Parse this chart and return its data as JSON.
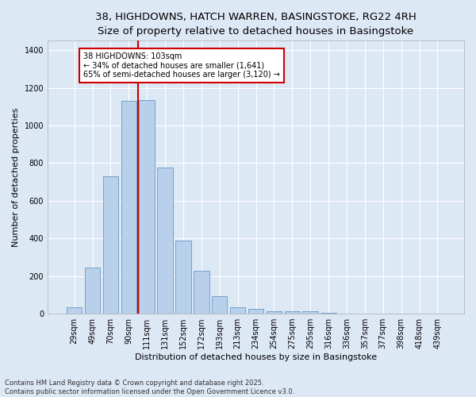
{
  "title_line1": "38, HIGHDOWNS, HATCH WARREN, BASINGSTOKE, RG22 4RH",
  "title_line2": "Size of property relative to detached houses in Basingstoke",
  "xlabel": "Distribution of detached houses by size in Basingstoke",
  "ylabel": "Number of detached properties",
  "categories": [
    "29sqm",
    "49sqm",
    "70sqm",
    "90sqm",
    "111sqm",
    "131sqm",
    "152sqm",
    "172sqm",
    "193sqm",
    "213sqm",
    "234sqm",
    "254sqm",
    "275sqm",
    "295sqm",
    "316sqm",
    "336sqm",
    "357sqm",
    "377sqm",
    "398sqm",
    "418sqm",
    "439sqm"
  ],
  "values": [
    35,
    245,
    730,
    1130,
    1135,
    775,
    390,
    230,
    95,
    35,
    25,
    15,
    12,
    12,
    4,
    0,
    0,
    0,
    0,
    0,
    0
  ],
  "bar_color": "#b8d0ea",
  "bar_edge_color": "#6699cc",
  "background_color": "#dde8f5",
  "grid_color": "#ffffff",
  "vline_color": "#cc0000",
  "annotation_text": "38 HIGHDOWNS: 103sqm\n← 34% of detached houses are smaller (1,641)\n65% of semi-detached houses are larger (3,120) →",
  "annotation_box_color": "#cc0000",
  "ylim": [
    0,
    1450
  ],
  "yticks": [
    0,
    200,
    400,
    600,
    800,
    1000,
    1200,
    1400
  ],
  "footnote": "Contains HM Land Registry data © Crown copyright and database right 2025.\nContains public sector information licensed under the Open Government Licence v3.0.",
  "title_fontsize": 9.5,
  "subtitle_fontsize": 8.5,
  "axis_label_fontsize": 8,
  "tick_fontsize": 7,
  "annotation_fontsize": 7,
  "footnote_fontsize": 6
}
